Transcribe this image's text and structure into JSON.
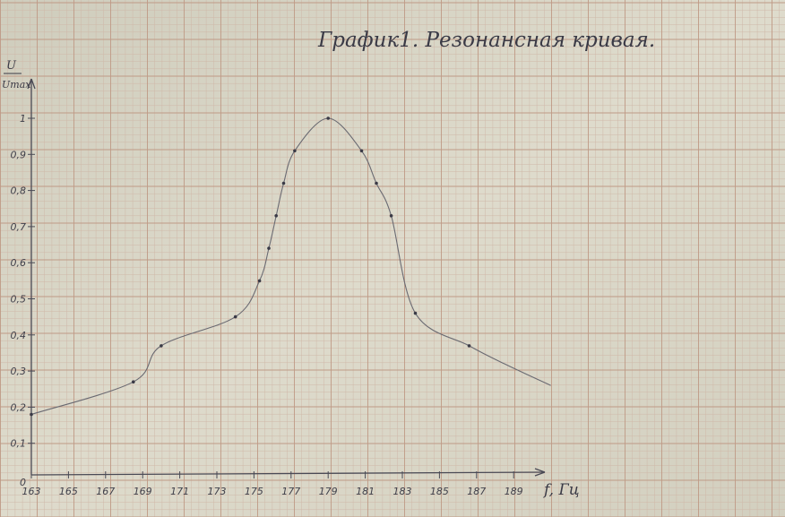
{
  "chart_data": {
    "type": "line",
    "title": "График1.  Резонансная кривая.",
    "xlabel": "f, Гц",
    "ylabel_top": "U",
    "ylabel_bottom": "Umax",
    "xlim": [
      163,
      191
    ],
    "ylim": [
      0,
      1.1
    ],
    "grid": true,
    "x_ticks": [
      163,
      165,
      167,
      169,
      171,
      173,
      175,
      177,
      179,
      181,
      183,
      185,
      187,
      189
    ],
    "x_tick_labels": [
      "163",
      "165",
      "167",
      "169",
      "171",
      "173",
      "175",
      "177",
      "179",
      "181",
      "183",
      "185",
      "187",
      "189"
    ],
    "y_ticks": [
      0,
      0.1,
      0.2,
      0.3,
      0.4,
      0.5,
      0.6,
      0.7,
      0.8,
      0.9,
      1
    ],
    "y_tick_labels": [
      "0",
      "0,1",
      "0,2",
      "0,3",
      "0,4",
      "0,5",
      "0,6",
      "0,7",
      "0,8",
      "0,9",
      "1"
    ],
    "series": [
      {
        "name": "U/Umax",
        "x": [
          163,
          168.5,
          170,
          174,
          175.3,
          175.8,
          176.2,
          176.6,
          177.2,
          179,
          180.8,
          181.6,
          182.4,
          183.7,
          186.6
        ],
        "values": [
          0.18,
          0.27,
          0.37,
          0.45,
          0.55,
          0.64,
          0.73,
          0.82,
          0.91,
          1.0,
          0.91,
          0.82,
          0.73,
          0.46,
          0.37
        ]
      }
    ],
    "curve_tail": {
      "x": [
        188.5,
        191
      ],
      "values": [
        0.32,
        0.26
      ]
    }
  }
}
